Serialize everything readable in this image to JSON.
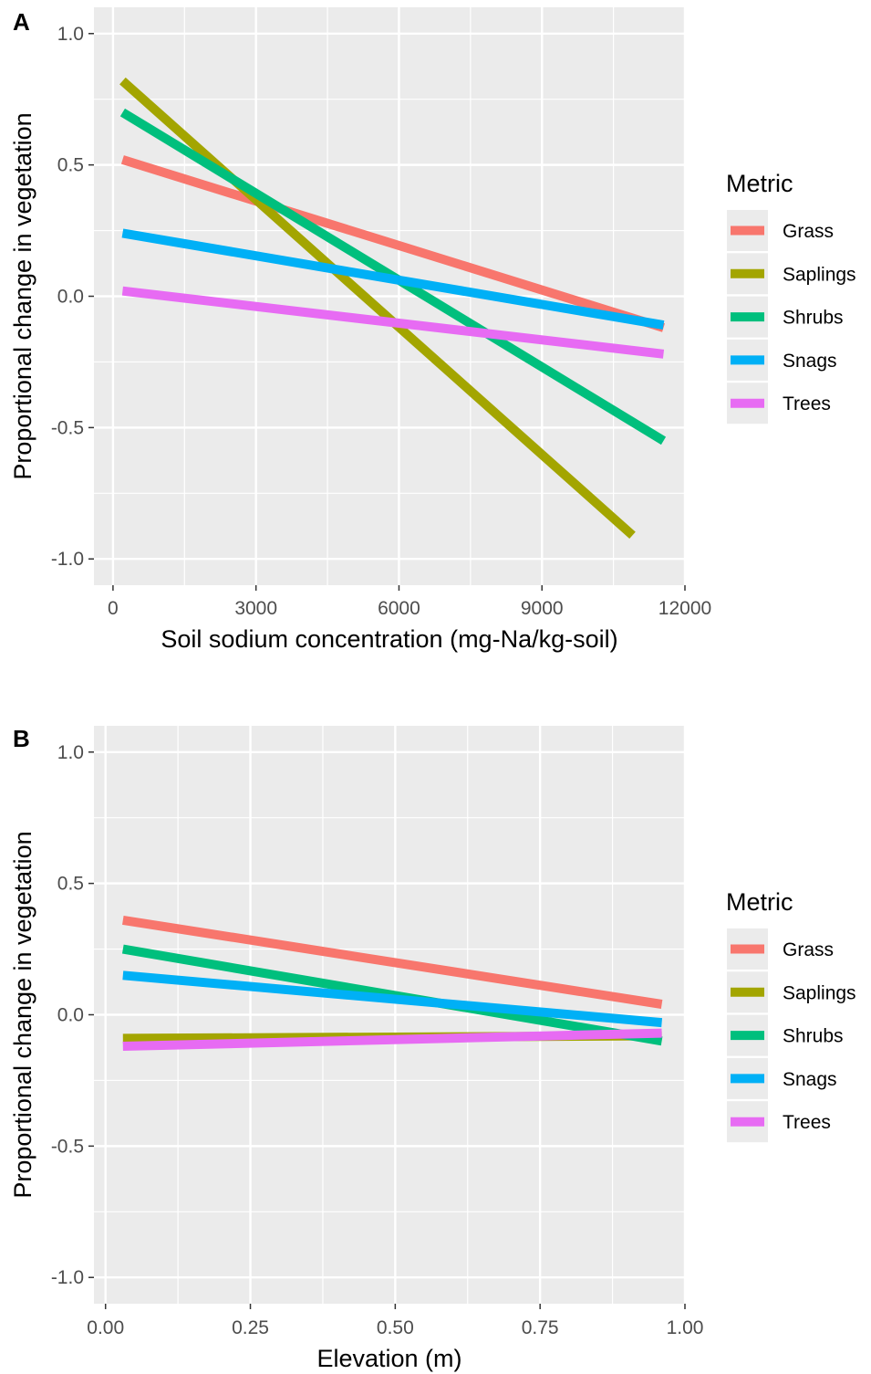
{
  "colors": {
    "Grass": "#F8766D",
    "Saplings": "#A3A500",
    "Shrubs": "#00BF7D",
    "Snags": "#00B0F6",
    "Trees": "#E76BF3",
    "panel_background": "#EBEBEB",
    "grid": "#FFFFFF"
  },
  "chart_data": [
    {
      "type": "line",
      "panel_label": "A",
      "title": "",
      "xlabel": "Soil sodium concentration (mg-Na/kg-soil)",
      "ylabel": "Proportional change in vegetation",
      "xlim": [
        -400,
        12000
      ],
      "ylim": [
        -1.1,
        1.1
      ],
      "x_ticks": [
        0,
        3000,
        6000,
        9000,
        12000
      ],
      "x_tick_labels": [
        "0",
        "3000",
        "6000",
        "9000",
        "12000"
      ],
      "y_ticks": [
        -1.0,
        -0.5,
        0.0,
        0.5,
        1.0
      ],
      "y_tick_labels": [
        "-1.0",
        "-0.5",
        "0.0",
        "0.5",
        "1.0"
      ],
      "grid": true,
      "legend": {
        "title": "Metric",
        "position": "right"
      },
      "series": [
        {
          "name": "Grass",
          "x": [
            200,
            11550
          ],
          "y": [
            0.52,
            -0.12
          ]
        },
        {
          "name": "Saplings",
          "x": [
            200,
            10900
          ],
          "y": [
            0.82,
            -0.91
          ]
        },
        {
          "name": "Shrubs",
          "x": [
            200,
            11550
          ],
          "y": [
            0.7,
            -0.55
          ]
        },
        {
          "name": "Snags",
          "x": [
            200,
            11550
          ],
          "y": [
            0.24,
            -0.11
          ]
        },
        {
          "name": "Trees",
          "x": [
            200,
            11550
          ],
          "y": [
            0.02,
            -0.22
          ]
        }
      ]
    },
    {
      "type": "line",
      "panel_label": "B",
      "title": "",
      "xlabel": "Elevation (m)",
      "ylabel": "Proportional change in vegetation",
      "xlim": [
        -0.02,
        1.0
      ],
      "ylim": [
        -1.1,
        1.1
      ],
      "x_ticks": [
        0.0,
        0.25,
        0.5,
        0.75,
        1.0
      ],
      "x_tick_labels": [
        "0.00",
        "0.25",
        "0.50",
        "0.75",
        "1.00"
      ],
      "y_ticks": [
        -1.0,
        -0.5,
        0.0,
        0.5,
        1.0
      ],
      "y_tick_labels": [
        "-1.0",
        "-0.5",
        "0.0",
        "0.5",
        "1.0"
      ],
      "grid": true,
      "legend": {
        "title": "Metric",
        "position": "right"
      },
      "series": [
        {
          "name": "Grass",
          "x": [
            0.03,
            0.96
          ],
          "y": [
            0.36,
            0.04
          ]
        },
        {
          "name": "Saplings",
          "x": [
            0.03,
            0.96
          ],
          "y": [
            -0.09,
            -0.08
          ]
        },
        {
          "name": "Shrubs",
          "x": [
            0.03,
            0.96
          ],
          "y": [
            0.25,
            -0.1
          ]
        },
        {
          "name": "Snags",
          "x": [
            0.03,
            0.96
          ],
          "y": [
            0.15,
            -0.03
          ]
        },
        {
          "name": "Trees",
          "x": [
            0.03,
            0.96
          ],
          "y": [
            -0.12,
            -0.07
          ]
        }
      ]
    }
  ]
}
